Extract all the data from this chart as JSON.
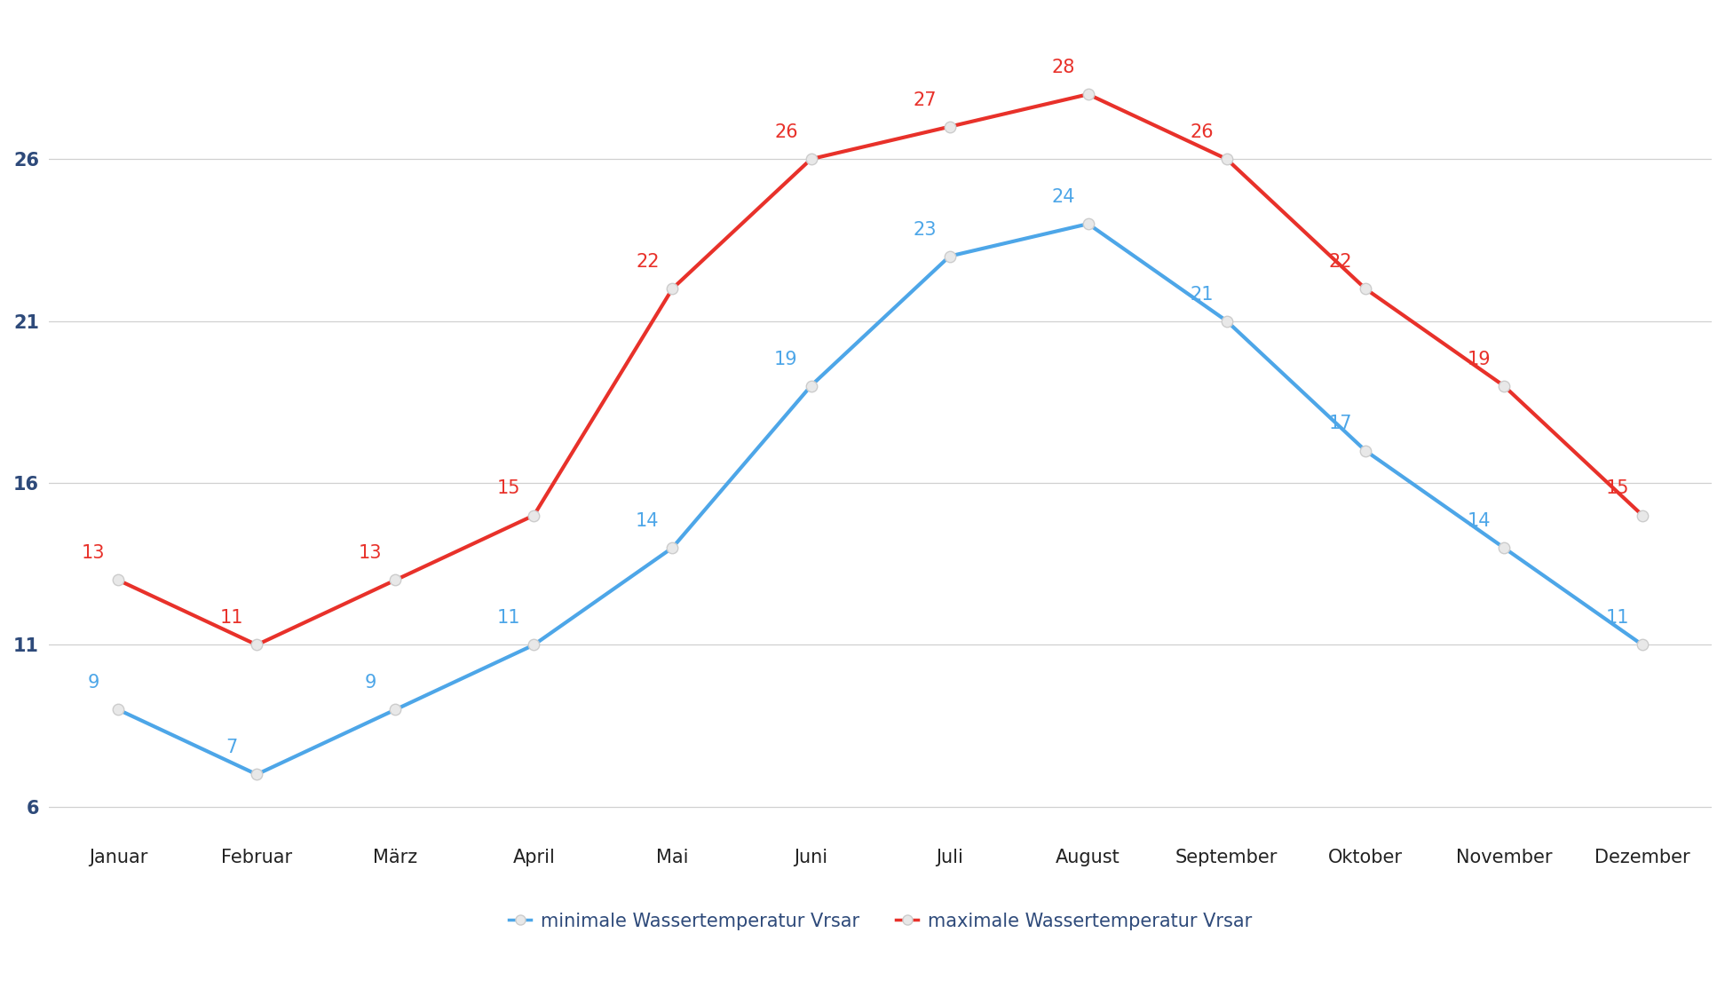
{
  "months": [
    "Januar",
    "Februar",
    "März",
    "April",
    "Mai",
    "Juni",
    "Juli",
    "August",
    "September",
    "Oktober",
    "November",
    "Dezember"
  ],
  "min_temps": [
    9,
    7,
    9,
    11,
    14,
    19,
    23,
    24,
    21,
    17,
    14,
    11
  ],
  "max_temps": [
    13,
    11,
    13,
    15,
    22,
    26,
    27,
    28,
    26,
    22,
    19,
    15
  ],
  "min_color": "#4DA6E8",
  "max_color": "#E8312A",
  "min_label": "minimale Wassertemperatur Vrsar",
  "max_label": "maximale Wassertemperatur Vrsar",
  "yticks": [
    6,
    11,
    16,
    21,
    26
  ],
  "ylim": [
    5.0,
    30.5
  ],
  "background_color": "#ffffff",
  "grid_color": "#d0d0d0",
  "line_width": 3.0,
  "marker_size": 9,
  "annotation_fontsize": 15,
  "axis_fontsize": 15,
  "legend_fontsize": 15,
  "ytick_color": "#2E4A7A",
  "xtick_color": "#222222"
}
